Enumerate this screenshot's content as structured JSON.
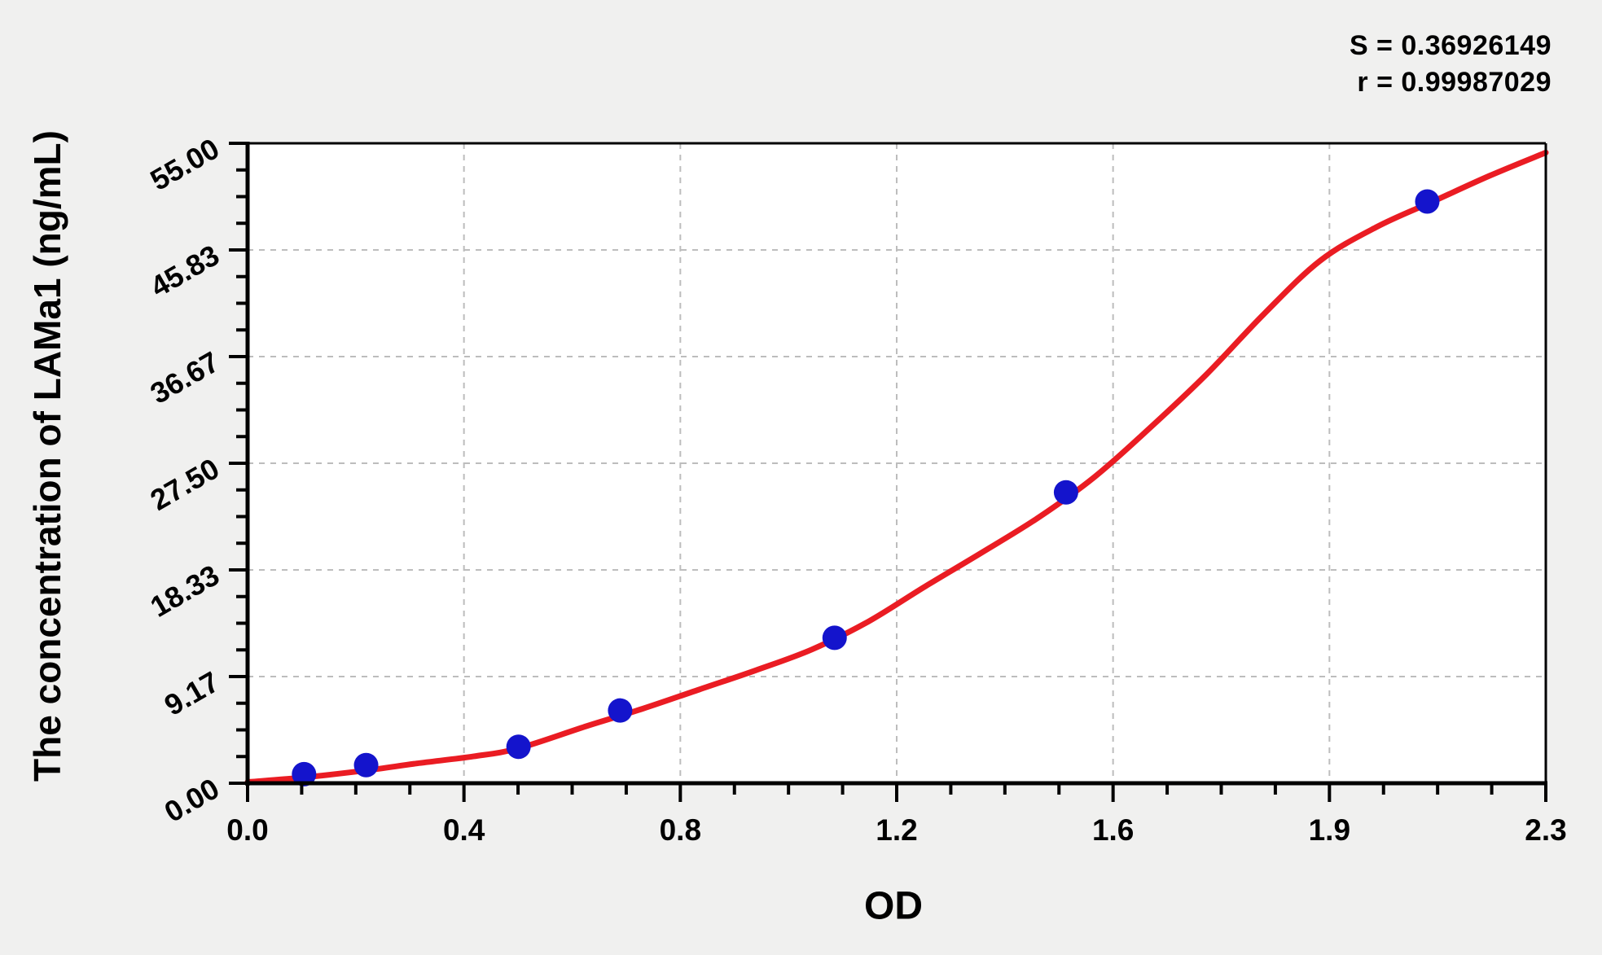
{
  "figure": {
    "background": "#f0f0ef",
    "stats": {
      "s_line": "S = 0.36926149",
      "r_line": "r = 0.99987029"
    }
  },
  "chart_data": {
    "type": "scatter",
    "title": "",
    "xlabel": "OD",
    "ylabel": "The concentration of LAMa1 (ng/mL)",
    "xlim": [
      0,
      2.3
    ],
    "ylim": [
      0,
      55
    ],
    "x_tick_labels": [
      "0.0",
      "0.4",
      "0.8",
      "1.2",
      "1.6",
      "1.9",
      "2.3"
    ],
    "y_tick_labels": [
      "0.00",
      "9.17",
      "18.33",
      "27.50",
      "36.67",
      "45.83",
      "55.00"
    ],
    "minor_divisions_per_major": 4,
    "grid": {
      "show": true,
      "style": "dashed",
      "color": "#bdbdbd",
      "at": "major-ticks"
    },
    "legend": null,
    "plot_background": "#ffffff",
    "axis_color": "#000000",
    "series": [
      {
        "name": "standard-points",
        "type": "scatter",
        "color": "#1414cc",
        "marker": "circle",
        "points": [
          {
            "x": 0.1,
            "y": 0.78
          },
          {
            "x": 0.21,
            "y": 1.56
          },
          {
            "x": 0.48,
            "y": 3.13
          },
          {
            "x": 0.66,
            "y": 6.25
          },
          {
            "x": 1.04,
            "y": 12.5
          },
          {
            "x": 1.45,
            "y": 25.0
          },
          {
            "x": 2.09,
            "y": 50.0
          }
        ]
      },
      {
        "name": "fitted-curve",
        "type": "line",
        "color": "#ea1c23",
        "samples": [
          [
            0.0,
            0.1
          ],
          [
            0.1,
            0.5
          ],
          [
            0.21,
            1.1
          ],
          [
            0.3,
            1.7
          ],
          [
            0.4,
            2.3
          ],
          [
            0.48,
            3.0
          ],
          [
            0.6,
            4.9
          ],
          [
            0.7,
            6.4
          ],
          [
            0.8,
            8.05
          ],
          [
            0.9,
            9.7
          ],
          [
            1.0,
            11.5
          ],
          [
            1.1,
            13.9
          ],
          [
            1.2,
            16.9
          ],
          [
            1.3,
            19.8
          ],
          [
            1.4,
            22.8
          ],
          [
            1.5,
            26.3
          ],
          [
            1.6,
            30.6
          ],
          [
            1.7,
            35.2
          ],
          [
            1.8,
            40.3
          ],
          [
            1.9,
            44.9
          ],
          [
            2.0,
            47.8
          ],
          [
            2.1,
            50.0
          ],
          [
            2.2,
            52.2
          ],
          [
            2.3,
            54.2
          ]
        ]
      }
    ]
  }
}
